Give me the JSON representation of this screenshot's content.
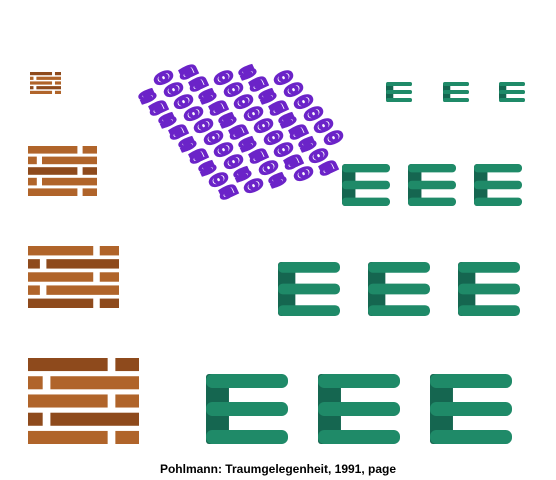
{
  "caption": "Pohlmann: Traumgelegenheit, 1991, page",
  "colors": {
    "brick": "#b0642a",
    "brick_dark": "#8e4a1c",
    "purple": "#6b23c8",
    "green": "#1f8a68",
    "green_dark": "#156650"
  },
  "glyphs": {
    "purple_a": "a",
    "purple_o": "o",
    "purple_s": "s",
    "green_m": "m"
  }
}
